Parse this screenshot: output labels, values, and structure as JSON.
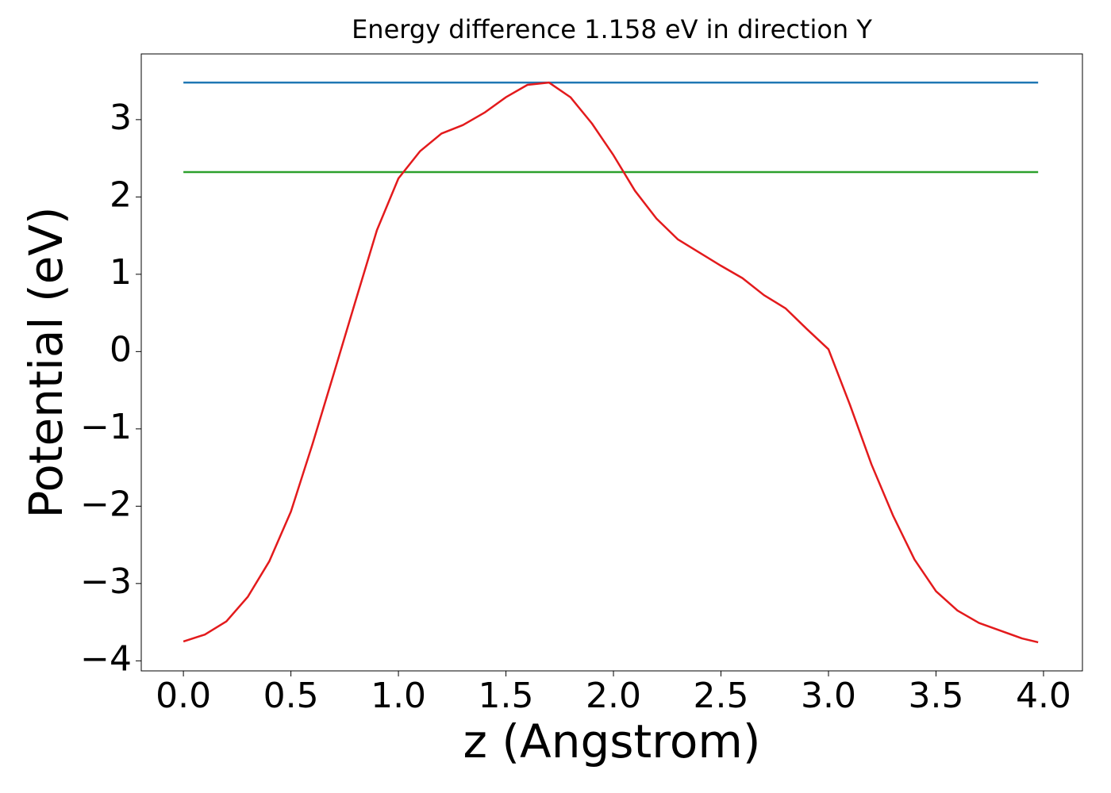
{
  "chart_data": {
    "type": "line",
    "title": "Energy difference 1.158 eV in direction Y",
    "x_label": "z (Angstrom)",
    "y_label": "Potential (eV)",
    "xlim": [
      -0.196,
      4.181
    ],
    "ylim": [
      -4.13,
      3.85
    ],
    "xticks": [
      {
        "value": 0,
        "label": "0.0"
      },
      {
        "value": 0.5,
        "label": "0.5"
      },
      {
        "value": 1,
        "label": "1.0"
      },
      {
        "value": 1.5,
        "label": "1.5"
      },
      {
        "value": 2,
        "label": "2.0"
      },
      {
        "value": 2.5,
        "label": "2.5"
      },
      {
        "value": 3,
        "label": "3.0"
      },
      {
        "value": 3.5,
        "label": "3.5"
      },
      {
        "value": 4,
        "label": "4.0"
      }
    ],
    "yticks": [
      {
        "value": -4,
        "label": "−4"
      },
      {
        "value": -3,
        "label": "−3"
      },
      {
        "value": -2,
        "label": "−2"
      },
      {
        "value": -1,
        "label": "−1"
      },
      0,
      1,
      2,
      3
    ],
    "grid": false,
    "series": [
      {
        "color": "#1f77b4",
        "x": [
          0,
          3.975
        ],
        "values": [
          3.48,
          3.48
        ]
      },
      {
        "color": "#2ca02c",
        "x": [
          0,
          3.975
        ],
        "values": [
          2.322,
          2.322
        ]
      },
      {
        "color": "#e31a1c",
        "x": [
          0,
          0.1,
          0.2,
          0.3,
          0.4,
          0.5,
          0.6,
          0.7,
          0.8,
          0.9,
          1.0,
          1.1,
          1.2,
          1.3,
          1.4,
          1.5,
          1.6,
          1.7,
          1.8,
          1.9,
          2.0,
          2.1,
          2.2,
          2.3,
          2.4,
          2.5,
          2.6,
          2.7,
          2.8,
          2.9,
          3.0,
          3.1,
          3.2,
          3.3,
          3.4,
          3.5,
          3.6,
          3.7,
          3.8,
          3.9,
          3.975
        ],
        "values": [
          -3.75,
          -3.66,
          -3.49,
          -3.17,
          -2.71,
          -2.07,
          -1.2,
          -0.28,
          0.65,
          1.57,
          2.24,
          2.59,
          2.82,
          2.93,
          3.09,
          3.29,
          3.45,
          3.48,
          3.29,
          2.95,
          2.54,
          2.08,
          1.72,
          1.45,
          1.28,
          1.11,
          0.95,
          0.73,
          0.56,
          0.29,
          0.03,
          -0.69,
          -1.46,
          -2.12,
          -2.69,
          -3.1,
          -3.35,
          -3.51,
          -3.61,
          -3.71,
          -3.76
        ]
      }
    ]
  }
}
